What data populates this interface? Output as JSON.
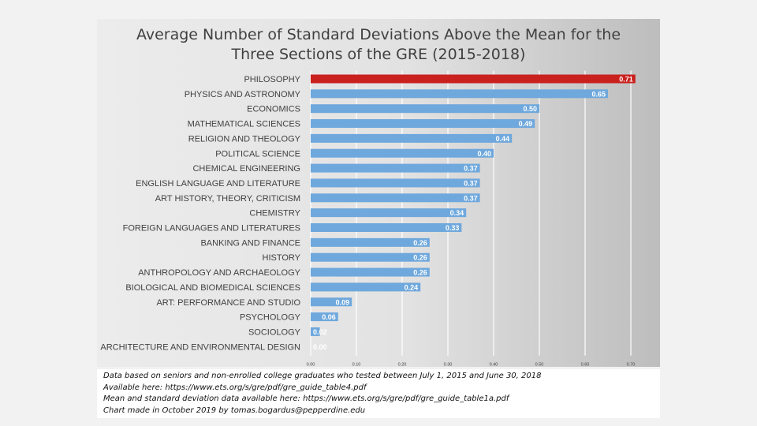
{
  "chart_data": {
    "type": "bar",
    "orientation": "horizontal",
    "title_lines": [
      "Average Number of Standard Deviations Above  the Mean for the",
      "Three Sections of the GRE (2015-2018)"
    ],
    "categories": [
      "PHILOSOPHY",
      "PHYSICS AND ASTRONOMY",
      "ECONOMICS",
      "MATHEMATICAL SCIENCES",
      "RELIGION AND THEOLOGY",
      "POLITICAL SCIENCE",
      "CHEMICAL ENGINEERING",
      "ENGLISH LANGUAGE AND LITERATURE",
      "ART HISTORY, THEORY, CRITICISM",
      "CHEMISTRY",
      "FOREIGN LANGUAGES AND LITERATURES",
      "BANKING AND FINANCE",
      "HISTORY",
      "ANTHROPOLOGY AND ARCHAEOLOGY",
      "BIOLOGICAL AND BIOMEDICAL SCIENCES",
      "ART: PERFORMANCE AND STUDIO",
      "PSYCHOLOGY",
      "SOCIOLOGY",
      "ARCHITECTURE AND ENVIRONMENTAL DESIGN"
    ],
    "values": [
      0.71,
      0.65,
      0.5,
      0.49,
      0.44,
      0.4,
      0.37,
      0.37,
      0.37,
      0.34,
      0.33,
      0.26,
      0.26,
      0.26,
      0.24,
      0.09,
      0.06,
      0.02,
      0.0
    ],
    "value_labels": [
      "0.71",
      "0.65",
      "0.50",
      "0.49",
      "0.44",
      "0.40",
      "0.37",
      "0.37",
      "0.37",
      "0.34",
      "0.33",
      "0.26",
      "0.26",
      "0.26",
      "0.24",
      "0.09",
      "0.06",
      "0.02",
      "0.00"
    ],
    "xlim": [
      0,
      0.7
    ],
    "x_ticks": [
      0.0,
      0.1,
      0.2,
      0.3,
      0.4,
      0.5,
      0.6,
      0.7
    ],
    "x_tick_labels": [
      "0.00",
      "0.10",
      "0.20",
      "0.30",
      "0.40",
      "0.50",
      "0.60",
      "0.70"
    ],
    "grid": "vertical",
    "highlight_index": 0,
    "colors": {
      "bar": "#6fa8dc",
      "highlight": "#c9211e",
      "grid": "#ffffff",
      "label_text": "#404040",
      "value_text": "#ffffff"
    }
  },
  "footer_notes": [
    "Data based on seniors and non-enrolled college graduates who tested between July 1, 2015 and June 30, 2018",
    "Available here: https://www.ets.org/s/gre/pdf/gre_guide_table4.pdf",
    "Mean and standard deviation data available here: https://www.ets.org/s/gre/pdf/gre_guide_table1a.pdf",
    "Chart made in October 2019 by tomas.bogardus@pepperdine.edu"
  ]
}
